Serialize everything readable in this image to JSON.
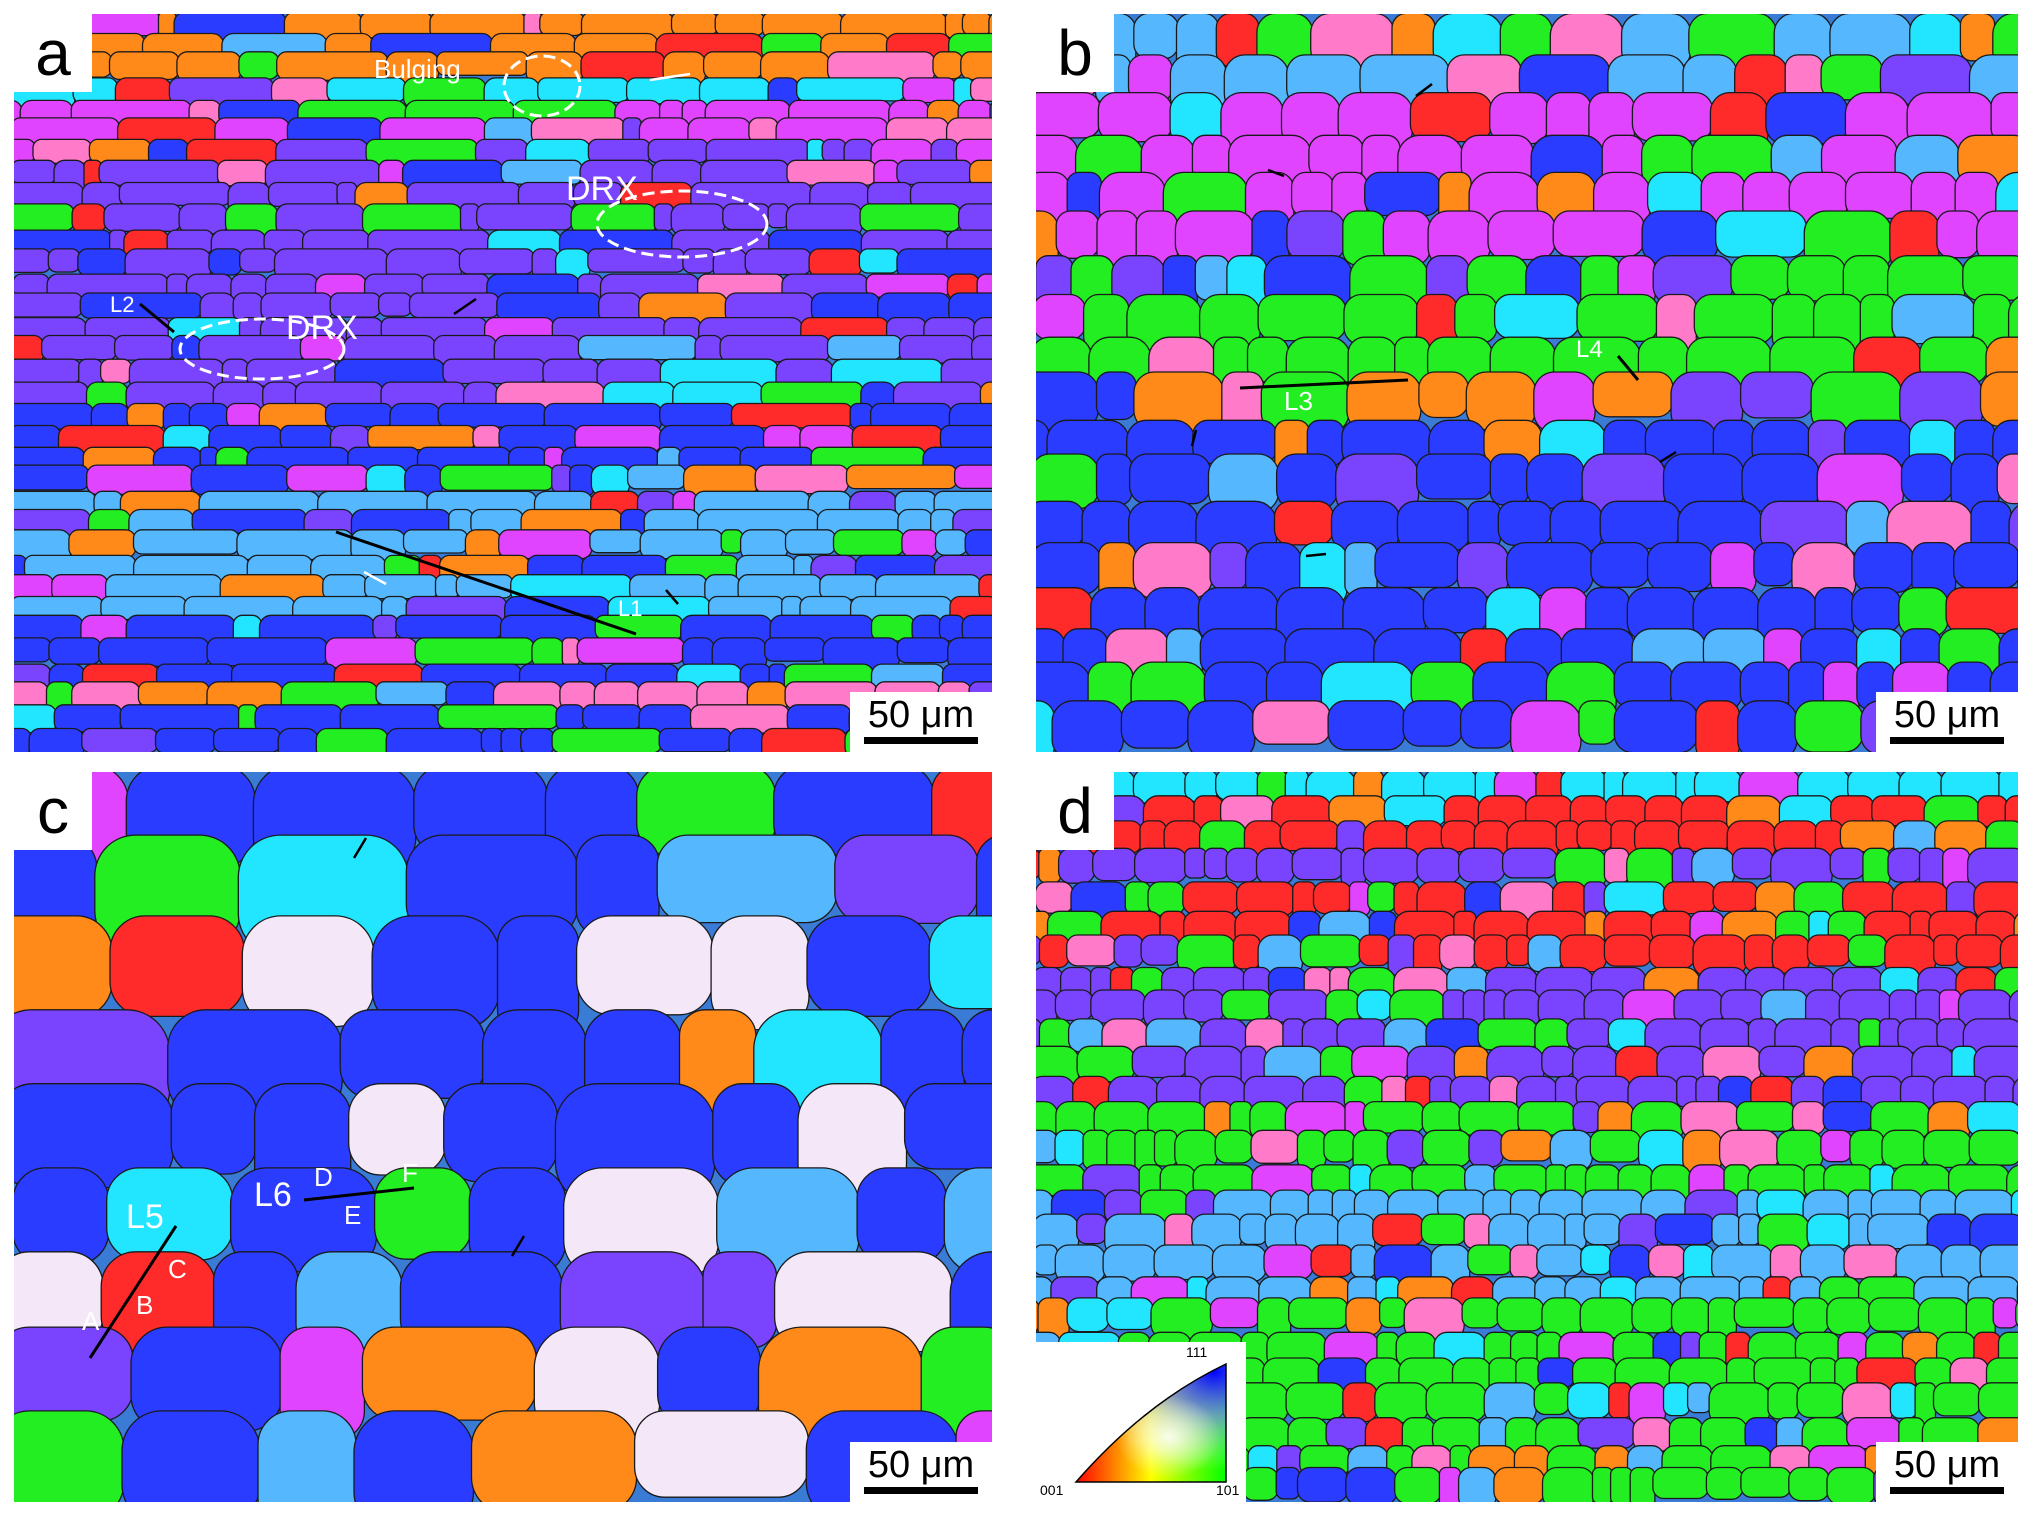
{
  "panels": {
    "a": {
      "label": "a",
      "scale": "50 μm",
      "bulging": "Bulging",
      "drx1": "DRX",
      "drx2": "DRX",
      "l1": "L1",
      "l2": "L2"
    },
    "b": {
      "label": "b",
      "scale": "50 μm",
      "l3": "L3",
      "l4": "L4"
    },
    "c": {
      "label": "c",
      "scale": "50 μm",
      "l5": "L5",
      "l6": "L6",
      "A": "A",
      "B": "B",
      "C": "C",
      "D": "D",
      "E": "E",
      "F": "F"
    },
    "d": {
      "label": "d",
      "scale": "50 μm",
      "legend": {
        "t111": "111",
        "t001": "001",
        "t101": "101"
      }
    }
  },
  "colors": {
    "red": "#ff2a2a",
    "green": "#22ee22",
    "blue": "#2a3cff",
    "cyan": "#22e6ff",
    "magenta": "#e044ff",
    "orange": "#ff8a1a",
    "purple": "#7a44ff",
    "pink": "#ff7ac8",
    "lightblue": "#55b8ff",
    "white": "#f4e8f8"
  }
}
